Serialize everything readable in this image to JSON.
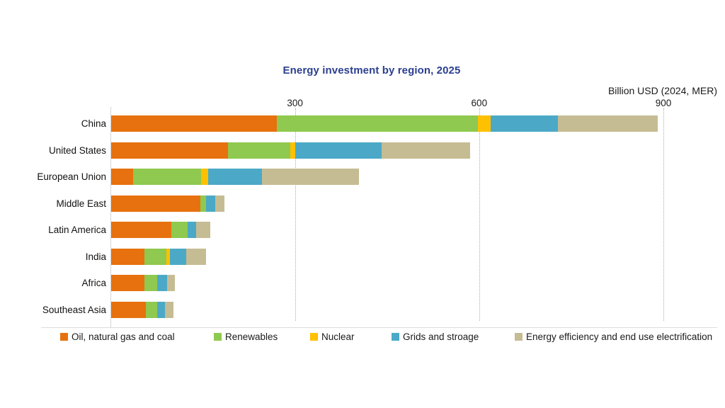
{
  "title": "Energy investment by region, 2025",
  "axis": {
    "unit_label": "Billion USD (2024, MER)",
    "ticks": [
      300,
      600,
      900
    ],
    "max": 900
  },
  "colors": {
    "oil": "#E7710E",
    "renewables": "#8FC94F",
    "nuclear": "#FFC000",
    "grids": "#4BA9C7",
    "efficiency": "#C5BC94",
    "title_blue": "#2B3F90"
  },
  "chart_data": {
    "type": "bar",
    "orientation": "horizontal",
    "stacked": true,
    "title": "Energy investment by region, 2025",
    "xlabel": "Billion USD (2024, MER)",
    "xlim": [
      0,
      900
    ],
    "xticks": [
      300,
      600,
      900
    ],
    "grid": "dotted-vertical",
    "legend_position": "bottom",
    "categories": [
      "China",
      "United States",
      "European Union",
      "Middle East",
      "Latin America",
      "India",
      "Africa",
      "Southeast Asia"
    ],
    "series": [
      {
        "name": "Oil, natural gas and coal",
        "color": "#E7710E",
        "values": [
          270,
          190,
          36,
          145,
          98,
          54,
          54,
          56
        ]
      },
      {
        "name": "Renewables",
        "color": "#8FC94F",
        "values": [
          327,
          102,
          110,
          10,
          26,
          36,
          21,
          19
        ]
      },
      {
        "name": "Nuclear",
        "color": "#FFC000",
        "values": [
          21,
          8,
          12,
          0,
          0,
          6,
          0,
          0
        ]
      },
      {
        "name": "Grids and stroage",
        "color": "#4BA9C7",
        "values": [
          110,
          140,
          88,
          15,
          14,
          26,
          16,
          13
        ]
      },
      {
        "name": "Energy efficiency and end use electrification",
        "color": "#C5BC94",
        "values": [
          162,
          145,
          158,
          14,
          23,
          32,
          13,
          14
        ]
      }
    ],
    "totals": [
      890,
      585,
      404,
      184,
      161,
      154,
      104,
      102
    ]
  }
}
